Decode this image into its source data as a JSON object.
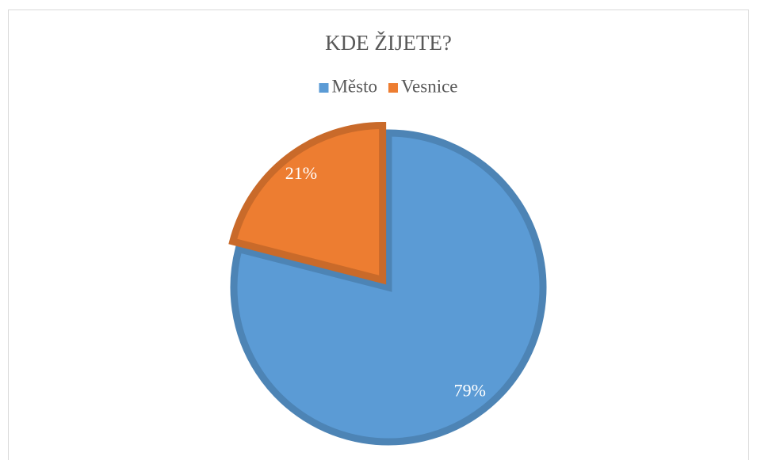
{
  "chart_data": {
    "type": "pie",
    "title": "KDE ŽIJETE?",
    "categories": [
      "Město",
      "Vesnice"
    ],
    "values": [
      79,
      21
    ],
    "value_labels": [
      "79%",
      "21%"
    ],
    "colors": [
      "#5b9bd5",
      "#ed7d31"
    ],
    "legend": "top"
  }
}
